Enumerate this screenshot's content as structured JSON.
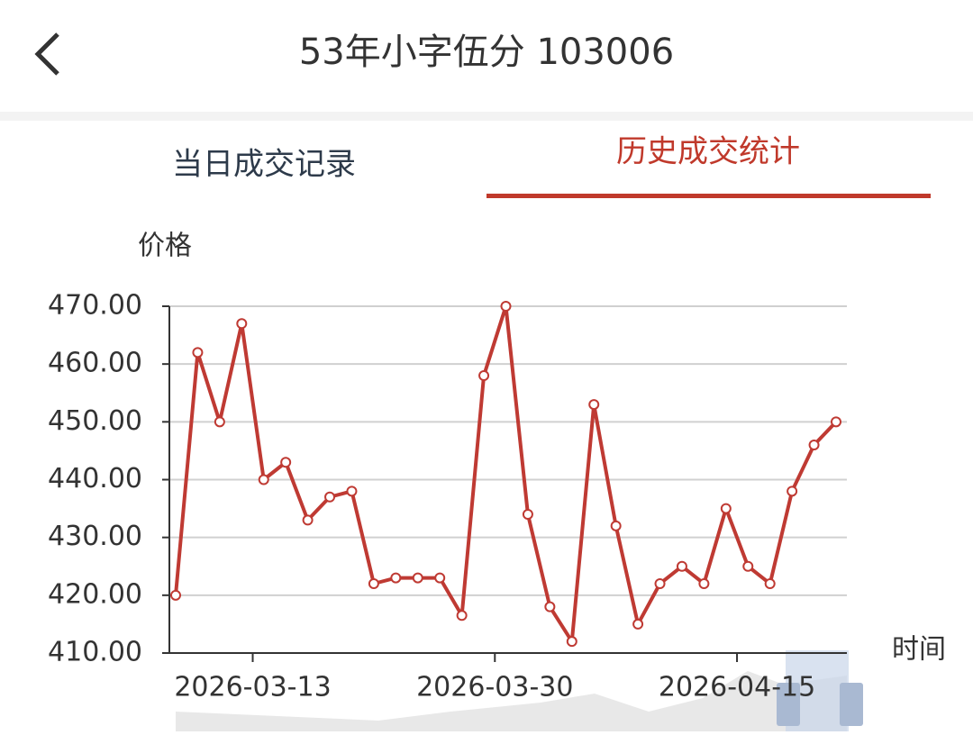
{
  "header": {
    "title": "53年小字伍分 103006"
  },
  "tabs": [
    "当日成交记录",
    "历史成交统计"
  ],
  "chart_data": {
    "type": "line",
    "y_label": "价格",
    "x_label": "时间",
    "categories": [
      null,
      null,
      null,
      null,
      "2026-03-13",
      null,
      null,
      null,
      null,
      null,
      null,
      null,
      null,
      null,
      null,
      "2026-03-30",
      null,
      null,
      null,
      null,
      null,
      null,
      null,
      null,
      null,
      null,
      "2026-04-15",
      null,
      null,
      null,
      null
    ],
    "values": [
      420,
      462,
      450,
      467,
      440,
      443,
      433,
      437,
      438,
      422,
      423,
      423,
      423,
      416.5,
      458,
      470,
      434,
      418,
      412,
      453,
      432,
      415,
      422,
      425,
      422,
      435,
      425,
      422,
      438,
      446,
      450
    ],
    "color": "#bf3a33",
    "ylim": [
      410,
      470
    ],
    "yticks": [
      {
        "value": 410,
        "label": "410.00"
      },
      {
        "value": 420,
        "label": "420.00"
      },
      {
        "value": 430,
        "label": "430.00"
      },
      {
        "value": 440,
        "label": "440.00"
      },
      {
        "value": 450,
        "label": "450.00"
      },
      {
        "value": 460,
        "label": "460.00"
      },
      {
        "value": 470,
        "label": "470.00"
      }
    ],
    "grid": true
  }
}
